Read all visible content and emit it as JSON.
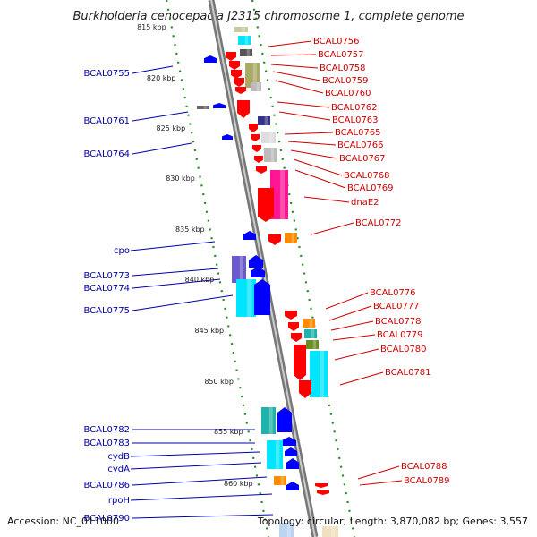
{
  "title": "Burkholderia cenocepacia J2315 chromosome 1, complete genome",
  "footer": {
    "accession": "Accession: NC_011000",
    "stats": "Topology: circular; Length: 3,870,082 bp; Genes: 3,557"
  },
  "colors": {
    "forward": "#0000ff",
    "reverse": "#ff0000",
    "left_label": "#0000aa",
    "right_label": "#cc0000",
    "tick": "#228b22",
    "backbone": "#999999"
  },
  "ticks": [
    "815 kbp",
    "820 kbp",
    "825 kbp",
    "830 kbp",
    "835 kbp",
    "840 kbp",
    "845 kbp",
    "850 kbp",
    "855 kbp",
    "860 kbp"
  ],
  "left_labels": [
    "BCAL0755",
    "BCAL0761",
    "BCAL0764",
    "cpo",
    "BCAL0773",
    "BCAL0774",
    "BCAL0775",
    "BCAL0782",
    "BCAL0783",
    "cydB",
    "cydA",
    "BCAL0786",
    "rpoH",
    "BCAL0790"
  ],
  "right_labels": [
    "BCAL0756",
    "BCAL0757",
    "BCAL0758",
    "BCAL0759",
    "BCAL0760",
    "BCAL0762",
    "BCAL0763",
    "BCAL0765",
    "BCAL0766",
    "BCAL0767",
    "BCAL0768",
    "BCAL0769",
    "dnaE2",
    "BCAL0772",
    "BCAL0776",
    "BCAL0777",
    "BCAL0778",
    "BCAL0779",
    "BCAL0780",
    "BCAL0781",
    "BCAL0788",
    "BCAL0789"
  ]
}
